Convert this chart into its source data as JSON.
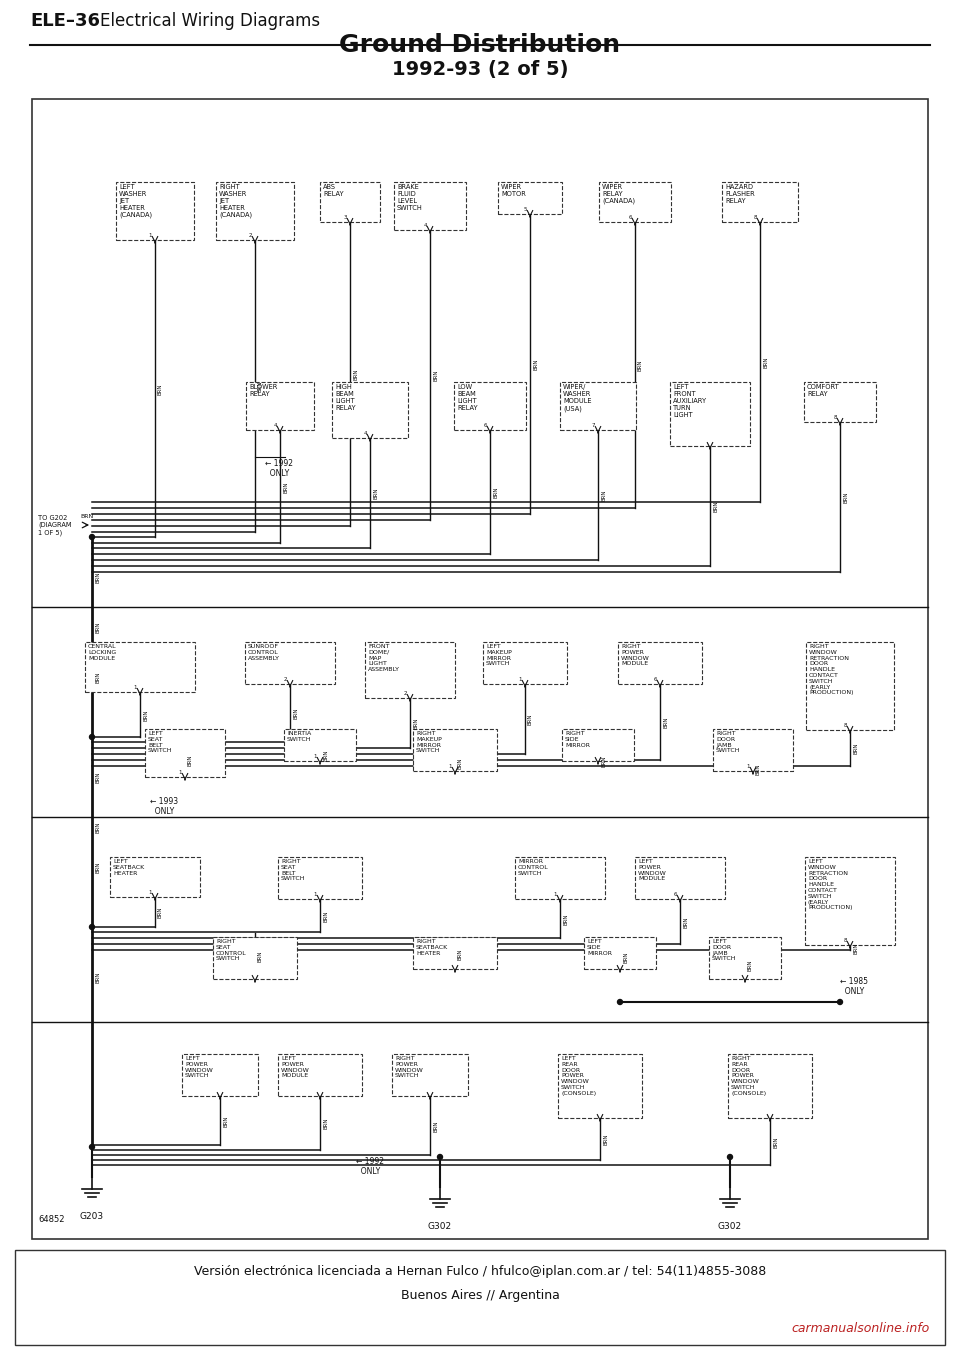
{
  "page_header": "ELE–36   Electrical Wiring Diagrams",
  "title": "Ground Distribution",
  "subtitle": "1992-93 (2 of 5)",
  "footer_line1": "Versión electrónica licenciada a Hernan Fulco / hfulco@iplan.com.ar / tel: 54(11)4855-3088",
  "footer_line2": "Buenos Aires // Argentina",
  "watermark": "carmanualsonline.info",
  "page_number": "64852",
  "bg_color": "#e8e8e8",
  "page_color": "#f0f0ee",
  "border_color": "#333333",
  "line_color": "#111111",
  "text_color": "#111111"
}
